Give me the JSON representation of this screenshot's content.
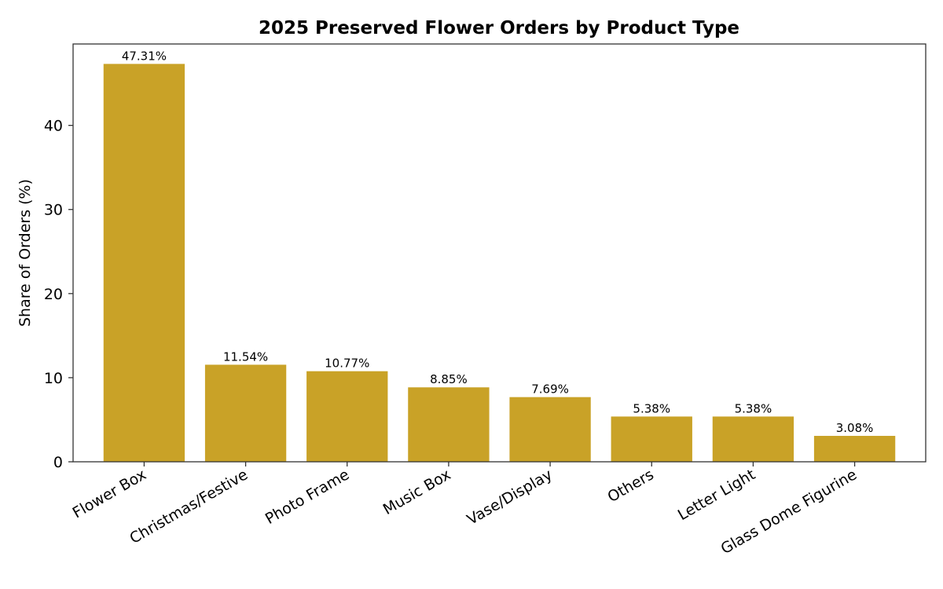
{
  "chart_data": {
    "type": "bar",
    "title": "2025 Preserved Flower Orders by Product Type",
    "xlabel": "",
    "ylabel": "Share of Orders (%)",
    "categories": [
      "Flower Box",
      "Christmas/Festive",
      "Photo Frame",
      "Music Box",
      "Vase/Display",
      "Others",
      "Letter Light",
      "Glass Dome Figurine"
    ],
    "values": [
      47.31,
      11.54,
      10.77,
      8.85,
      7.69,
      5.38,
      5.38,
      3.08
    ],
    "data_labels": [
      "47.31%",
      "11.54%",
      "10.77%",
      "8.85%",
      "7.69%",
      "5.38%",
      "5.38%",
      "3.08%"
    ],
    "ylim": [
      0,
      49.68
    ],
    "yticks": [
      0,
      10,
      20,
      30,
      40
    ],
    "grid": false,
    "bar_color": "#c9a227"
  }
}
